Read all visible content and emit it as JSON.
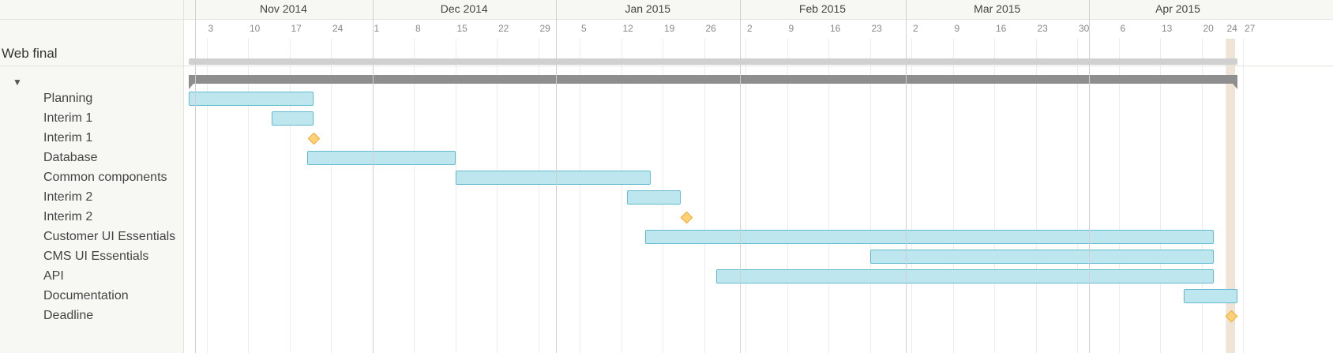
{
  "project": {
    "title": "Web final",
    "toggle": "▼"
  },
  "timeline": {
    "months": [
      {
        "label": "Nov 2014",
        "start": "2014-11-01",
        "end": "2014-12-01"
      },
      {
        "label": "Dec 2014",
        "start": "2014-12-01",
        "end": "2015-01-01"
      },
      {
        "label": "Jan 2015",
        "start": "2015-01-01",
        "end": "2015-02-01"
      },
      {
        "label": "Feb 2015",
        "start": "2015-02-01",
        "end": "2015-03-01"
      },
      {
        "label": "Mar 2015",
        "start": "2015-03-01",
        "end": "2015-04-01"
      },
      {
        "label": "Apr 2015",
        "start": "2015-04-01",
        "end": "2015-05-01"
      }
    ],
    "week_ticks": [
      {
        "label": "3",
        "date": "2014-11-03"
      },
      {
        "label": "10",
        "date": "2014-11-10"
      },
      {
        "label": "17",
        "date": "2014-11-17"
      },
      {
        "label": "24",
        "date": "2014-11-24"
      },
      {
        "label": "1",
        "date": "2014-12-01"
      },
      {
        "label": "8",
        "date": "2014-12-08"
      },
      {
        "label": "15",
        "date": "2014-12-15"
      },
      {
        "label": "22",
        "date": "2014-12-22"
      },
      {
        "label": "29",
        "date": "2014-12-29"
      },
      {
        "label": "5",
        "date": "2015-01-05"
      },
      {
        "label": "12",
        "date": "2015-01-12"
      },
      {
        "label": "19",
        "date": "2015-01-19"
      },
      {
        "label": "26",
        "date": "2015-01-26"
      },
      {
        "label": "2",
        "date": "2015-02-02"
      },
      {
        "label": "9",
        "date": "2015-02-09"
      },
      {
        "label": "16",
        "date": "2015-02-16"
      },
      {
        "label": "23",
        "date": "2015-02-23"
      },
      {
        "label": "2",
        "date": "2015-03-02"
      },
      {
        "label": "9",
        "date": "2015-03-09"
      },
      {
        "label": "16",
        "date": "2015-03-16"
      },
      {
        "label": "23",
        "date": "2015-03-23"
      },
      {
        "label": "30",
        "date": "2015-03-30"
      },
      {
        "label": "6",
        "date": "2015-04-06"
      },
      {
        "label": "13",
        "date": "2015-04-13"
      },
      {
        "label": "20",
        "date": "2015-04-20"
      },
      {
        "label": "24",
        "date": "2015-04-24"
      },
      {
        "label": "27",
        "date": "2015-04-27"
      }
    ],
    "today": "2015-04-24"
  },
  "summary": {
    "start": "2014-10-31",
    "end": "2015-04-26"
  },
  "tasks": [
    {
      "name": "Planning",
      "type": "task",
      "start": "2014-10-31",
      "end": "2014-11-21"
    },
    {
      "name": "Interim 1",
      "type": "task",
      "start": "2014-11-14",
      "end": "2014-11-21"
    },
    {
      "name": "Interim 1",
      "type": "milestone",
      "date": "2014-11-21"
    },
    {
      "name": "Database",
      "type": "task",
      "start": "2014-11-20",
      "end": "2014-12-15"
    },
    {
      "name": "Common components",
      "type": "task",
      "start": "2014-12-15",
      "end": "2015-01-17"
    },
    {
      "name": "Interim 2",
      "type": "task",
      "start": "2015-01-13",
      "end": "2015-01-22"
    },
    {
      "name": "Interim 2",
      "type": "milestone",
      "date": "2015-01-23"
    },
    {
      "name": "Customer UI Essentials",
      "type": "task",
      "start": "2015-01-16",
      "end": "2015-04-22"
    },
    {
      "name": "CMS UI Essentials",
      "type": "task",
      "start": "2015-02-23",
      "end": "2015-04-22"
    },
    {
      "name": "API",
      "type": "task",
      "start": "2015-01-28",
      "end": "2015-04-22"
    },
    {
      "name": "Documentation",
      "type": "task",
      "start": "2015-04-17",
      "end": "2015-04-26"
    },
    {
      "name": "Deadline",
      "type": "milestone",
      "date": "2015-04-25"
    }
  ],
  "colors": {
    "task_fill": "#bde6ef",
    "task_border": "#62bcd1",
    "milestone_fill": "#ffd27a",
    "milestone_border": "#f0a92e",
    "summary": "#8e8e8e",
    "project_bar": "#d0d0d0",
    "today": "#efe4d6"
  }
}
